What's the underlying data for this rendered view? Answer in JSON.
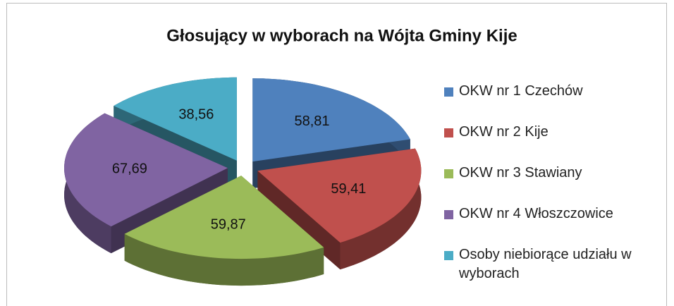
{
  "chart_data": {
    "type": "pie3d",
    "title": "Głosujący w wyborach na Wójta Gminy Kije",
    "categories": [
      "OKW nr 1 Czechów",
      "OKW nr 2 Kije",
      "OKW nr 3 Stawiany",
      "OKW nr 4 Włoszczowice",
      "Osoby niebiorące udziału w wyborach"
    ],
    "values": [
      58.81,
      59.41,
      59.87,
      67.69,
      38.56
    ],
    "value_labels": [
      "58,81",
      "59,41",
      "59,87",
      "67,69",
      "38,56"
    ],
    "colors": [
      "#4F81BD",
      "#C0504D",
      "#9BBB59",
      "#8064A2",
      "#4BACC6"
    ],
    "legend": "right"
  }
}
